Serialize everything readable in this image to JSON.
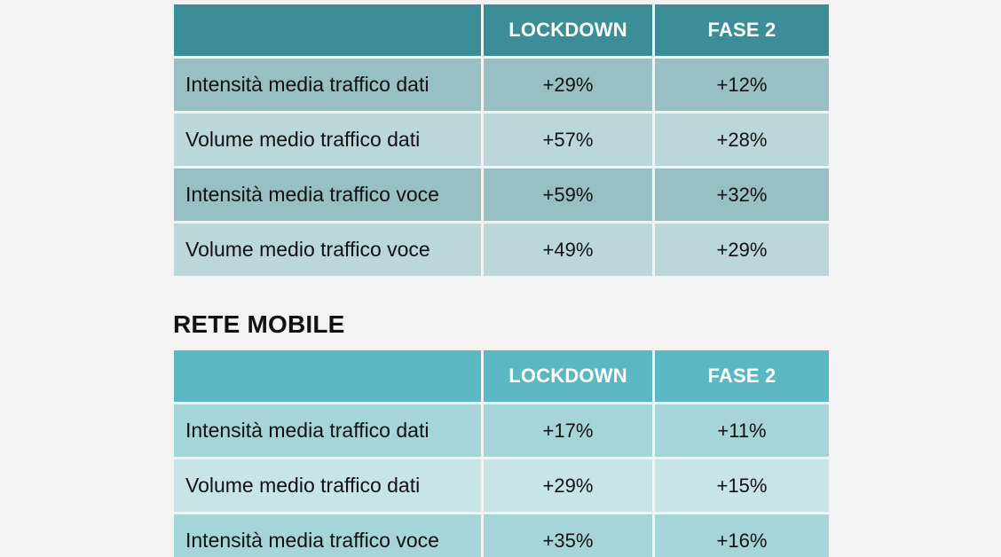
{
  "fixed_network": {
    "headers": {
      "label": "",
      "lockdown": "LOCKDOWN",
      "fase2": "FASE 2"
    },
    "rows": [
      {
        "label": "Intensità media traffico dati",
        "lockdown": "+29%",
        "fase2": "+12%"
      },
      {
        "label": "Volume medio traffico dati",
        "lockdown": "+57%",
        "fase2": "+28%"
      },
      {
        "label": "Intensità media traffico voce",
        "lockdown": "+59%",
        "fase2": "+32%"
      },
      {
        "label": "Volume medio traffico voce",
        "lockdown": "+49%",
        "fase2": "+29%"
      }
    ]
  },
  "mobile_network": {
    "title": "RETE MOBILE",
    "headers": {
      "label": "",
      "lockdown": "LOCKDOWN",
      "fase2": "FASE 2"
    },
    "rows": [
      {
        "label": "Intensità media traffico dati",
        "lockdown": "+17%",
        "fase2": "+11%"
      },
      {
        "label": "Volume medio traffico dati",
        "lockdown": "+29%",
        "fase2": "+15%"
      },
      {
        "label": "Intensità media traffico voce",
        "lockdown": "+35%",
        "fase2": "+16%"
      }
    ]
  },
  "colors": {
    "fixed_header": "#3b8e97",
    "fixed_row_dark": "#97bfc4",
    "fixed_row_light": "#bcd7da",
    "mobile_header": "#5bb7c1",
    "mobile_row_dark": "#a6d5d9",
    "mobile_row_light": "#c7e4e7",
    "background": "#f3f3f3"
  }
}
